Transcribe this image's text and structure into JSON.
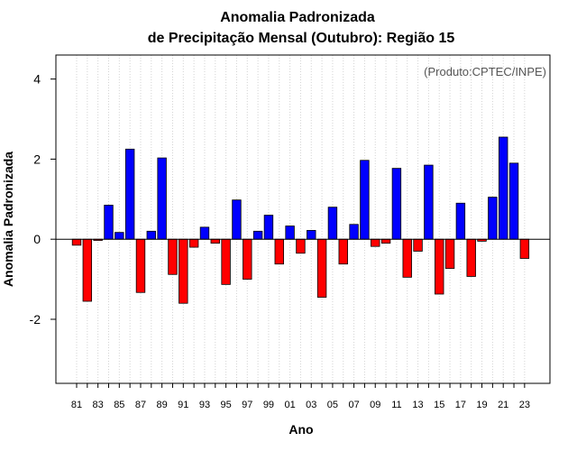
{
  "chart_data": {
    "type": "bar",
    "title_lines": [
      "Anomalia Padronizada",
      "de Precipitação Mensal (Outubro): Região 15"
    ],
    "xlabel": "Ano",
    "ylabel": "Anomalia Padronizada",
    "credit": "(Produto:CPTEC/INPE)",
    "ylim": [
      -3.6,
      4.6
    ],
    "yticks": [
      -2,
      0,
      2,
      4
    ],
    "ytick_labels": [
      "-2",
      "0",
      "2",
      "4"
    ],
    "categories": [
      "81",
      "82",
      "83",
      "84",
      "85",
      "86",
      "87",
      "88",
      "89",
      "90",
      "91",
      "92",
      "93",
      "94",
      "95",
      "96",
      "97",
      "98",
      "99",
      "00",
      "01",
      "02",
      "03",
      "04",
      "05",
      "06",
      "07",
      "08",
      "09",
      "10",
      "11",
      "12",
      "13",
      "14",
      "15",
      "16",
      "17",
      "18",
      "19",
      "20",
      "21",
      "22",
      "23"
    ],
    "xtick_labels": [
      "81",
      "83",
      "85",
      "87",
      "89",
      "91",
      "93",
      "95",
      "97",
      "99",
      "01",
      "03",
      "05",
      "07",
      "09",
      "11",
      "13",
      "15",
      "17",
      "19",
      "21",
      "23"
    ],
    "values": [
      -0.15,
      -1.55,
      -0.03,
      0.85,
      0.17,
      2.25,
      -1.33,
      0.2,
      2.03,
      -0.88,
      -1.6,
      -0.2,
      0.3,
      -0.1,
      -1.13,
      0.98,
      -1.0,
      0.2,
      0.6,
      -0.62,
      0.33,
      -0.35,
      0.22,
      -1.45,
      0.8,
      -0.62,
      0.37,
      1.97,
      -0.18,
      -0.1,
      1.77,
      -0.95,
      -0.3,
      1.85,
      -1.37,
      -0.73,
      0.9,
      -0.93,
      -0.05,
      1.05,
      2.55,
      1.9,
      -0.48
    ],
    "grid": "vertical-dotted",
    "colors": {
      "positive": "#0000ff",
      "negative": "#ff0000",
      "grid": "#d3d3d3",
      "zero_line": "#000000",
      "bar_border": "#000000"
    }
  }
}
